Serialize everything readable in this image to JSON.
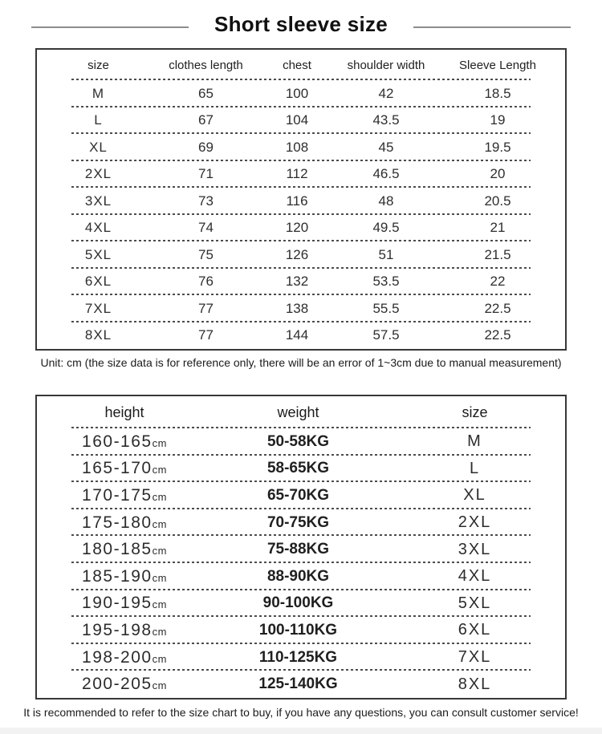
{
  "title": "Short sleeve size",
  "size_table": {
    "headers": {
      "size": "size",
      "clothes_length": "clothes length",
      "chest": "chest",
      "shoulder_width": "shoulder width",
      "sleeve_length": "Sleeve Length"
    },
    "rows": [
      [
        "M",
        "65",
        "100",
        "42",
        "18.5"
      ],
      [
        "L",
        "67",
        "104",
        "43.5",
        "19"
      ],
      [
        "XL",
        "69",
        "108",
        "45",
        "19.5"
      ],
      [
        "2XL",
        "71",
        "112",
        "46.5",
        "20"
      ],
      [
        "3XL",
        "73",
        "116",
        "48",
        "20.5"
      ],
      [
        "4XL",
        "74",
        "120",
        "49.5",
        "21"
      ],
      [
        "5XL",
        "75",
        "126",
        "51",
        "21.5"
      ],
      [
        "6XL",
        "76",
        "132",
        "53.5",
        "22"
      ],
      [
        "7XL",
        "77",
        "138",
        "55.5",
        "22.5"
      ],
      [
        "8XL",
        "77",
        "144",
        "57.5",
        "22.5"
      ]
    ],
    "unit_note": "Unit: cm (the size data is for reference only, there will be an error of 1~3cm due to manual measurement)"
  },
  "fit_table": {
    "headers": {
      "height": "height",
      "weight": "weight",
      "size": "size"
    },
    "height_unit": "cm",
    "rows": [
      {
        "height": "160-165",
        "weight": "50-58KG",
        "size": "M"
      },
      {
        "height": "165-170",
        "weight": "58-65KG",
        "size": "L"
      },
      {
        "height": "170-175",
        "weight": "65-70KG",
        "size": "XL"
      },
      {
        "height": "175-180",
        "weight": "70-75KG",
        "size": "2XL"
      },
      {
        "height": "180-185",
        "weight": "75-88KG",
        "size": "3XL"
      },
      {
        "height": "185-190",
        "weight": "88-90KG",
        "size": "4XL"
      },
      {
        "height": "190-195",
        "weight": "90-100KG",
        "size": "5XL"
      },
      {
        "height": "195-198",
        "weight": "100-110KG",
        "size": "6XL"
      },
      {
        "height": "198-200",
        "weight": "110-125KG",
        "size": "7XL"
      },
      {
        "height": "200-205",
        "weight": "125-140KG",
        "size": "8XL"
      }
    ],
    "note": "It is recommended to refer to the size chart to buy, if you have any questions, you can consult customer service!"
  },
  "colors": {
    "box_border": "#373737",
    "dashed_divider": "#4c4c4c",
    "title_line": "#8d8d8d",
    "bottom_strip": "#f2f2f2",
    "background": "#ffffff"
  }
}
